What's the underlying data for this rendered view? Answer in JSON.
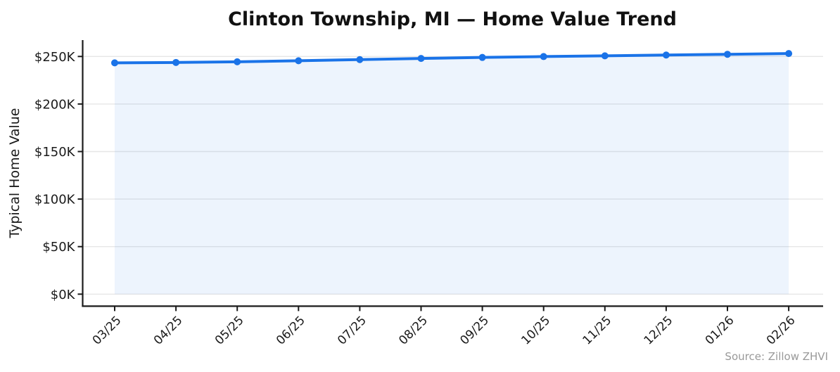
{
  "chart_data": {
    "type": "line",
    "title": "Clinton Township, MI — Home Value Trend",
    "ylabel": "Typical Home Value",
    "xlabel": "",
    "categories": [
      "03/25",
      "04/25",
      "05/25",
      "06/25",
      "07/25",
      "08/25",
      "09/25",
      "10/25",
      "11/25",
      "12/25",
      "01/26",
      "02/26"
    ],
    "values": [
      243.3,
      243.7,
      244.4,
      245.5,
      246.7,
      247.9,
      249.0,
      249.9,
      250.7,
      251.5,
      252.3,
      253.1
    ],
    "value_unit": "thousand USD ($K)",
    "yticks": {
      "labels": [
        "$0K",
        "$50K",
        "$100K",
        "$150K",
        "$200K",
        "$250K"
      ],
      "values": [
        0,
        50,
        100,
        150,
        200,
        250
      ]
    },
    "ylim": [
      0,
      267
    ],
    "grid": "horizontal-only",
    "legend": "none",
    "marker": "circle",
    "area_under_line": true,
    "source_note": "Source: Zillow ZHVI",
    "colors": {
      "line": "#1a73e8",
      "marker": "#1a73e8",
      "area_fill": "rgba(26,115,232,0.08)",
      "grid": "#e6e6e6",
      "spine": "#1a1a1a",
      "tick_label": "#1a1a1a",
      "title": "#111111",
      "source": "#999999",
      "background": "#ffffff"
    }
  }
}
